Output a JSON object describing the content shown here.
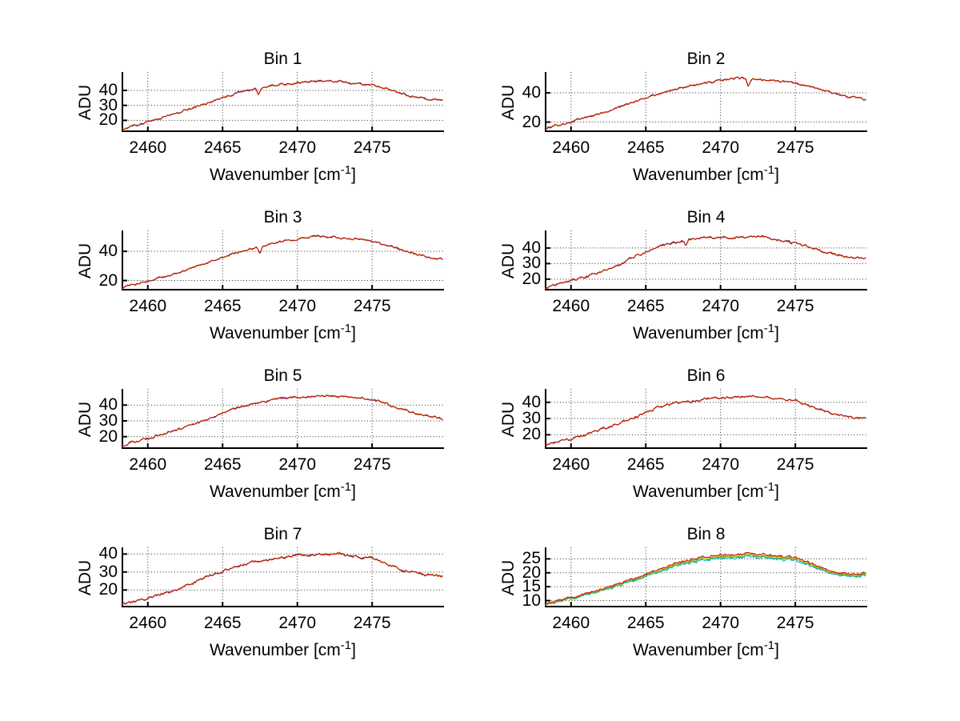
{
  "figure": {
    "background": "#ffffff",
    "ylabel": "ADU",
    "xlabel_pre": "Wavenumber [cm",
    "xlabel_sup": "-1",
    "xlabel_post": "]"
  },
  "chart_data": [
    {
      "type": "line",
      "title": "Bin 1",
      "xlabel": "Wavenumber [cm^-1]",
      "ylabel": "ADU",
      "xlim": [
        2458.3,
        2479.7
      ],
      "ylim": [
        13,
        52
      ],
      "xticks": [
        2460,
        2465,
        2470,
        2475
      ],
      "xtick_labels": [
        "2460",
        "2465",
        "2470",
        "2475"
      ],
      "yticks": [
        20,
        30,
        40
      ],
      "ytick_labels": [
        "20",
        "30",
        "40"
      ],
      "grid": "dotted",
      "envelope": [
        [
          2458.3,
          14
        ],
        [
          2459,
          16
        ],
        [
          2460,
          19.5
        ],
        [
          2461,
          22
        ],
        [
          2462,
          25
        ],
        [
          2463,
          28.5
        ],
        [
          2464,
          31.5
        ],
        [
          2465,
          35
        ],
        [
          2466,
          38.5
        ],
        [
          2467,
          41
        ],
        [
          2468,
          42.5
        ],
        [
          2469,
          44
        ],
        [
          2470,
          45
        ],
        [
          2471,
          46
        ],
        [
          2472,
          46.5
        ],
        [
          2473,
          46
        ],
        [
          2474,
          44.5
        ],
        [
          2475,
          43.5
        ],
        [
          2476,
          41
        ],
        [
          2477,
          38
        ],
        [
          2478,
          35.5
        ],
        [
          2479,
          34
        ],
        [
          2479.7,
          33.5
        ]
      ],
      "noise_amp": 0.7,
      "dip": {
        "x": 2467.4,
        "depth": 4,
        "width": 0.15
      },
      "series": [
        {
          "name": "trace-blue",
          "color": "#3344bb",
          "jitter": 0.4
        },
        {
          "name": "trace-yellow",
          "color": "#cc8822",
          "jitter": 0.4
        },
        {
          "name": "trace-red",
          "color": "#c41400",
          "jitter": 0
        }
      ]
    },
    {
      "type": "line",
      "title": "Bin 2",
      "xlabel": "Wavenumber [cm^-1]",
      "ylabel": "ADU",
      "xlim": [
        2458.3,
        2479.7
      ],
      "ylim": [
        14,
        54
      ],
      "xticks": [
        2460,
        2465,
        2470,
        2475
      ],
      "xtick_labels": [
        "2460",
        "2465",
        "2470",
        "2475"
      ],
      "yticks": [
        20,
        40
      ],
      "ytick_labels": [
        "20",
        "40"
      ],
      "grid": "dotted",
      "envelope": [
        [
          2458.3,
          15.5
        ],
        [
          2459,
          17.5
        ],
        [
          2460,
          20
        ],
        [
          2461,
          23
        ],
        [
          2462,
          26
        ],
        [
          2463,
          29.5
        ],
        [
          2464,
          33
        ],
        [
          2465,
          36.5
        ],
        [
          2466,
          40
        ],
        [
          2467,
          42.5
        ],
        [
          2468,
          45
        ],
        [
          2469,
          47
        ],
        [
          2470,
          48.5
        ],
        [
          2471,
          50
        ],
        [
          2472,
          49.5
        ],
        [
          2473,
          49
        ],
        [
          2474,
          48
        ],
        [
          2475,
          46.5
        ],
        [
          2476,
          44
        ],
        [
          2477,
          41.5
        ],
        [
          2478,
          38.5
        ],
        [
          2479,
          36.5
        ],
        [
          2479.7,
          35
        ]
      ],
      "noise_amp": 0.7,
      "dip": {
        "x": 2471.85,
        "depth": 5,
        "width": 0.12
      },
      "series": [
        {
          "name": "trace-blue",
          "color": "#3344bb",
          "jitter": 0.4
        },
        {
          "name": "trace-yellow",
          "color": "#cc8822",
          "jitter": 0.4
        },
        {
          "name": "trace-red",
          "color": "#c41400",
          "jitter": 0
        }
      ]
    },
    {
      "type": "line",
      "title": "Bin 3",
      "xlabel": "Wavenumber [cm^-1]",
      "ylabel": "ADU",
      "xlim": [
        2458.3,
        2479.7
      ],
      "ylim": [
        14,
        54
      ],
      "xticks": [
        2460,
        2465,
        2470,
        2475
      ],
      "xtick_labels": [
        "2460",
        "2465",
        "2470",
        "2475"
      ],
      "yticks": [
        20,
        40
      ],
      "ytick_labels": [
        "20",
        "40"
      ],
      "grid": "dotted",
      "envelope": [
        [
          2458.3,
          15
        ],
        [
          2459,
          17
        ],
        [
          2460,
          19.5
        ],
        [
          2461,
          22.5
        ],
        [
          2462,
          25.5
        ],
        [
          2463,
          29
        ],
        [
          2464,
          32.5
        ],
        [
          2465,
          36
        ],
        [
          2466,
          39.5
        ],
        [
          2467,
          42
        ],
        [
          2468,
          44.5
        ],
        [
          2469,
          47
        ],
        [
          2470,
          48.5
        ],
        [
          2471,
          50
        ],
        [
          2472,
          50
        ],
        [
          2473,
          49
        ],
        [
          2474,
          48.5
        ],
        [
          2475,
          47
        ],
        [
          2476,
          44
        ],
        [
          2477,
          41
        ],
        [
          2478,
          38
        ],
        [
          2479,
          35.5
        ],
        [
          2479.7,
          34.5
        ]
      ],
      "noise_amp": 0.7,
      "dip": {
        "x": 2467.5,
        "depth": 4.5,
        "width": 0.14
      },
      "series": [
        {
          "name": "trace-blue",
          "color": "#3344bb",
          "jitter": 0.4
        },
        {
          "name": "trace-yellow",
          "color": "#cc8822",
          "jitter": 0.4
        },
        {
          "name": "trace-red",
          "color": "#c41400",
          "jitter": 0
        }
      ]
    },
    {
      "type": "line",
      "title": "Bin 4",
      "xlabel": "Wavenumber [cm^-1]",
      "ylabel": "ADU",
      "xlim": [
        2458.3,
        2479.7
      ],
      "ylim": [
        13.5,
        51
      ],
      "xticks": [
        2460,
        2465,
        2470,
        2475
      ],
      "xtick_labels": [
        "2460",
        "2465",
        "2470",
        "2475"
      ],
      "yticks": [
        20,
        30,
        40
      ],
      "ytick_labels": [
        "20",
        "30",
        "40"
      ],
      "grid": "dotted",
      "envelope": [
        [
          2458.3,
          14.5
        ],
        [
          2459,
          16.5
        ],
        [
          2460,
          19
        ],
        [
          2461,
          21.5
        ],
        [
          2462,
          24.5
        ],
        [
          2463,
          28.5
        ],
        [
          2464,
          33.5
        ],
        [
          2465,
          37.5
        ],
        [
          2466,
          41.5
        ],
        [
          2467,
          43.5
        ],
        [
          2468,
          45.5
        ],
        [
          2469,
          47
        ],
        [
          2470,
          46.5
        ],
        [
          2471,
          47
        ],
        [
          2472,
          47.5
        ],
        [
          2473,
          47
        ],
        [
          2474,
          45
        ],
        [
          2475,
          43
        ],
        [
          2476,
          40.5
        ],
        [
          2477,
          37.5
        ],
        [
          2478,
          35
        ],
        [
          2479,
          33.5
        ],
        [
          2479.7,
          34
        ]
      ],
      "noise_amp": 0.75,
      "dip": {
        "x": 2467.7,
        "depth": 3,
        "width": 0.12
      },
      "series": [
        {
          "name": "trace-blue",
          "color": "#3344bb",
          "jitter": 0.4
        },
        {
          "name": "trace-yellow",
          "color": "#cc8822",
          "jitter": 0.4
        },
        {
          "name": "trace-red",
          "color": "#c41400",
          "jitter": 0
        }
      ]
    },
    {
      "type": "line",
      "title": "Bin 5",
      "xlabel": "Wavenumber [cm^-1]",
      "ylabel": "ADU",
      "xlim": [
        2458.3,
        2479.7
      ],
      "ylim": [
        13,
        50
      ],
      "xticks": [
        2460,
        2465,
        2470,
        2475
      ],
      "xtick_labels": [
        "2460",
        "2465",
        "2470",
        "2475"
      ],
      "yticks": [
        20,
        30,
        40
      ],
      "ytick_labels": [
        "20",
        "30",
        "40"
      ],
      "grid": "dotted",
      "envelope": [
        [
          2458.3,
          14.5
        ],
        [
          2459,
          16.5
        ],
        [
          2460,
          19
        ],
        [
          2461,
          21.5
        ],
        [
          2462,
          24.5
        ],
        [
          2463,
          27.5
        ],
        [
          2464,
          31
        ],
        [
          2465,
          34.5
        ],
        [
          2466,
          38.5
        ],
        [
          2467,
          41
        ],
        [
          2468,
          42.5
        ],
        [
          2469,
          44.5
        ],
        [
          2470,
          45
        ],
        [
          2471,
          45.5
        ],
        [
          2472,
          46
        ],
        [
          2473,
          45.5
        ],
        [
          2474,
          44.5
        ],
        [
          2475,
          43.5
        ],
        [
          2476,
          41
        ],
        [
          2477,
          37.5
        ],
        [
          2478,
          34.5
        ],
        [
          2479,
          32.5
        ],
        [
          2479.7,
          31.5
        ]
      ],
      "noise_amp": 0.7,
      "dip": null,
      "series": [
        {
          "name": "trace-blue",
          "color": "#3344bb",
          "jitter": 0.4
        },
        {
          "name": "trace-yellow",
          "color": "#cc8822",
          "jitter": 0.4
        },
        {
          "name": "trace-red",
          "color": "#c41400",
          "jitter": 0
        }
      ]
    },
    {
      "type": "line",
      "title": "Bin 6",
      "xlabel": "Wavenumber [cm^-1]",
      "ylabel": "ADU",
      "xlim": [
        2458.3,
        2479.7
      ],
      "ylim": [
        12,
        48
      ],
      "xticks": [
        2460,
        2465,
        2470,
        2475
      ],
      "xtick_labels": [
        "2460",
        "2465",
        "2470",
        "2475"
      ],
      "yticks": [
        20,
        30,
        40
      ],
      "ytick_labels": [
        "20",
        "30",
        "40"
      ],
      "grid": "dotted",
      "envelope": [
        [
          2458.3,
          13.5
        ],
        [
          2459,
          15.5
        ],
        [
          2460,
          17.5
        ],
        [
          2461,
          20
        ],
        [
          2462,
          23
        ],
        [
          2463,
          26.5
        ],
        [
          2464,
          29.5
        ],
        [
          2465,
          34
        ],
        [
          2466,
          37.5
        ],
        [
          2467,
          39.5
        ],
        [
          2468,
          40.5
        ],
        [
          2469,
          42
        ],
        [
          2470,
          42.5
        ],
        [
          2471,
          43
        ],
        [
          2472,
          44
        ],
        [
          2473,
          43
        ],
        [
          2474,
          42
        ],
        [
          2475,
          41
        ],
        [
          2476,
          37.5
        ],
        [
          2477,
          34.5
        ],
        [
          2478,
          32
        ],
        [
          2479,
          30.5
        ],
        [
          2479.7,
          30.5
        ]
      ],
      "noise_amp": 0.7,
      "dip": null,
      "series": [
        {
          "name": "trace-blue",
          "color": "#3344bb",
          "jitter": 0.4
        },
        {
          "name": "trace-yellow",
          "color": "#cc8822",
          "jitter": 0.4
        },
        {
          "name": "trace-red",
          "color": "#c41400",
          "jitter": 0
        }
      ]
    },
    {
      "type": "line",
      "title": "Bin 7",
      "xlabel": "Wavenumber [cm^-1]",
      "ylabel": "ADU",
      "xlim": [
        2458.3,
        2479.7
      ],
      "ylim": [
        11,
        43.5
      ],
      "xticks": [
        2460,
        2465,
        2470,
        2475
      ],
      "xtick_labels": [
        "2460",
        "2465",
        "2470",
        "2475"
      ],
      "yticks": [
        20,
        30,
        40
      ],
      "ytick_labels": [
        "20",
        "30",
        "40"
      ],
      "grid": "dotted",
      "envelope": [
        [
          2458.3,
          12
        ],
        [
          2459,
          13.5
        ],
        [
          2460,
          15.5
        ],
        [
          2461,
          18
        ],
        [
          2462,
          20.5
        ],
        [
          2463,
          24
        ],
        [
          2464,
          27.5
        ],
        [
          2465,
          30.5
        ],
        [
          2466,
          33.5
        ],
        [
          2467,
          35.5
        ],
        [
          2468,
          36.5
        ],
        [
          2469,
          38
        ],
        [
          2470,
          39
        ],
        [
          2471,
          39.5
        ],
        [
          2472,
          40
        ],
        [
          2473,
          40
        ],
        [
          2474,
          38.5
        ],
        [
          2475,
          37.5
        ],
        [
          2476,
          34.5
        ],
        [
          2477,
          31.5
        ],
        [
          2478,
          29.5
        ],
        [
          2479,
          28
        ],
        [
          2479.7,
          27.5
        ]
      ],
      "noise_amp": 0.7,
      "dip": null,
      "series": [
        {
          "name": "trace-blue",
          "color": "#3344bb",
          "jitter": 0.4
        },
        {
          "name": "trace-yellow",
          "color": "#cc8822",
          "jitter": 0.4
        },
        {
          "name": "trace-red",
          "color": "#c41400",
          "jitter": 0
        }
      ]
    },
    {
      "type": "line",
      "title": "Bin 8",
      "xlabel": "Wavenumber [cm^-1]",
      "ylabel": "ADU",
      "xlim": [
        2458.3,
        2479.7
      ],
      "ylim": [
        8,
        29
      ],
      "xticks": [
        2460,
        2465,
        2470,
        2475
      ],
      "xtick_labels": [
        "2460",
        "2465",
        "2470",
        "2475"
      ],
      "yticks": [
        10,
        15,
        20,
        25
      ],
      "ytick_labels": [
        "10",
        "15",
        "20",
        "25"
      ],
      "grid": "dotted",
      "envelope": [
        [
          2458.3,
          9
        ],
        [
          2459,
          10
        ],
        [
          2460,
          11
        ],
        [
          2461,
          12.5
        ],
        [
          2462,
          14
        ],
        [
          2463,
          15.8
        ],
        [
          2464,
          17.5
        ],
        [
          2465,
          19.5
        ],
        [
          2466,
          21.5
        ],
        [
          2467,
          23.5
        ],
        [
          2468,
          24.5
        ],
        [
          2469,
          26
        ],
        [
          2470,
          26.5
        ],
        [
          2471,
          26.5
        ],
        [
          2472,
          27
        ],
        [
          2473,
          26.5
        ],
        [
          2474,
          26
        ],
        [
          2475,
          25.5
        ],
        [
          2476,
          23.5
        ],
        [
          2477,
          21.5
        ],
        [
          2478,
          20
        ],
        [
          2479,
          19.5
        ],
        [
          2479.7,
          20
        ]
      ],
      "noise_amp": 0.45,
      "dip": null,
      "series": [
        {
          "name": "trace-cyan",
          "color": "#00b4cc",
          "scale": -0.045,
          "jitter": 0.2
        },
        {
          "name": "trace-green",
          "color": "#33a033",
          "scale": -0.03,
          "jitter": 0.2
        },
        {
          "name": "trace-yellow",
          "color": "#ccb400",
          "scale": -0.015,
          "jitter": 0.2
        },
        {
          "name": "trace-red",
          "color": "#c41400",
          "scale": 0,
          "jitter": 0
        }
      ]
    }
  ]
}
